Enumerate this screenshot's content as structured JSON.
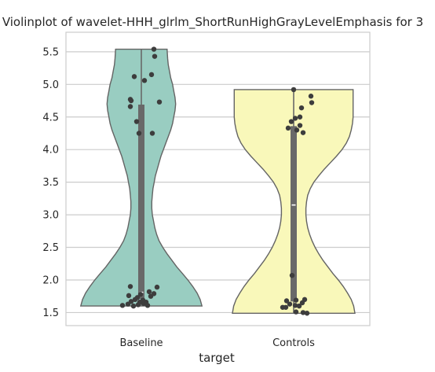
{
  "chart_data": {
    "type": "violin",
    "title": "Violinplot of wavelet-HHH_glrlm_ShortRunHighGrayLevelEmphasis for 3",
    "xlabel": "target",
    "ylabel": "",
    "categories": [
      "Baseline",
      "Controls"
    ],
    "ylim": [
      1.3,
      5.8
    ],
    "yticks": [
      1.5,
      2.0,
      2.5,
      3.0,
      3.5,
      4.0,
      4.5,
      5.0,
      5.5
    ],
    "ytick_labels": [
      "1.5",
      "2.0",
      "2.5",
      "3.0",
      "3.5",
      "4.0",
      "4.5",
      "5.0",
      "5.5"
    ],
    "grid": "horizontal",
    "inner": "box",
    "cut": 0,
    "series": [
      {
        "category": "Baseline",
        "color": "#99cdc1",
        "min": 1.6,
        "max": 5.54,
        "q1": 1.71,
        "median": 1.81,
        "q3": 4.69,
        "density": [
          [
            1.6,
            0.99
          ],
          [
            1.7,
            0.96
          ],
          [
            1.8,
            0.91
          ],
          [
            1.9,
            0.84
          ],
          [
            2.0,
            0.76
          ],
          [
            2.1,
            0.67
          ],
          [
            2.2,
            0.58
          ],
          [
            2.3,
            0.5
          ],
          [
            2.4,
            0.42
          ],
          [
            2.5,
            0.35
          ],
          [
            2.6,
            0.29
          ],
          [
            2.7,
            0.25
          ],
          [
            2.8,
            0.22
          ],
          [
            2.9,
            0.2
          ],
          [
            3.0,
            0.18
          ],
          [
            3.1,
            0.17
          ],
          [
            3.2,
            0.17
          ],
          [
            3.3,
            0.18
          ],
          [
            3.4,
            0.19
          ],
          [
            3.5,
            0.21
          ],
          [
            3.6,
            0.23
          ],
          [
            3.7,
            0.26
          ],
          [
            3.8,
            0.29
          ],
          [
            3.9,
            0.32
          ],
          [
            4.0,
            0.36
          ],
          [
            4.1,
            0.4
          ],
          [
            4.2,
            0.44
          ],
          [
            4.3,
            0.48
          ],
          [
            4.4,
            0.51
          ],
          [
            4.5,
            0.53
          ],
          [
            4.6,
            0.55
          ],
          [
            4.7,
            0.56
          ],
          [
            4.8,
            0.55
          ],
          [
            4.9,
            0.53
          ],
          [
            5.0,
            0.51
          ],
          [
            5.1,
            0.48
          ],
          [
            5.2,
            0.46
          ],
          [
            5.3,
            0.44
          ],
          [
            5.4,
            0.43
          ],
          [
            5.54,
            0.42
          ]
        ],
        "points": [
          [
            -0.24,
            1.61
          ],
          [
            -0.17,
            1.63
          ],
          [
            -0.1,
            1.6
          ],
          [
            -0.04,
            1.62
          ],
          [
            0.03,
            1.64
          ],
          [
            0.08,
            1.61
          ],
          [
            -0.13,
            1.67
          ],
          [
            -0.02,
            1.66
          ],
          [
            0.06,
            1.66
          ],
          [
            -0.08,
            1.7
          ],
          [
            0.02,
            1.69
          ],
          [
            -0.16,
            1.76
          ],
          [
            -0.05,
            1.73
          ],
          [
            0.12,
            1.75
          ],
          [
            0.16,
            1.79
          ],
          [
            -0.01,
            1.78
          ],
          [
            0.1,
            1.82
          ],
          [
            -0.14,
            1.9
          ],
          [
            0.2,
            1.89
          ],
          [
            -0.03,
            4.25
          ],
          [
            0.14,
            4.25
          ],
          [
            -0.06,
            4.43
          ],
          [
            -0.14,
            4.66
          ],
          [
            -0.13,
            4.75
          ],
          [
            -0.14,
            4.77
          ],
          [
            0.23,
            4.73
          ],
          [
            0.04,
            5.06
          ],
          [
            -0.09,
            5.12
          ],
          [
            0.13,
            5.15
          ],
          [
            0.17,
            5.43
          ],
          [
            0.16,
            5.54
          ]
        ]
      },
      {
        "category": "Controls",
        "color": "#f9f8ba",
        "min": 1.49,
        "max": 4.92,
        "q1": 1.67,
        "median": 3.15,
        "q3": 4.36,
        "density": [
          [
            1.49,
            1.0
          ],
          [
            1.6,
            0.98
          ],
          [
            1.7,
            0.94
          ],
          [
            1.8,
            0.88
          ],
          [
            1.9,
            0.81
          ],
          [
            2.0,
            0.73
          ],
          [
            2.1,
            0.64
          ],
          [
            2.2,
            0.56
          ],
          [
            2.3,
            0.48
          ],
          [
            2.4,
            0.41
          ],
          [
            2.5,
            0.35
          ],
          [
            2.6,
            0.3
          ],
          [
            2.7,
            0.26
          ],
          [
            2.8,
            0.23
          ],
          [
            2.9,
            0.21
          ],
          [
            3.0,
            0.2
          ],
          [
            3.1,
            0.2
          ],
          [
            3.2,
            0.21
          ],
          [
            3.3,
            0.23
          ],
          [
            3.4,
            0.27
          ],
          [
            3.5,
            0.33
          ],
          [
            3.6,
            0.41
          ],
          [
            3.7,
            0.5
          ],
          [
            3.8,
            0.6
          ],
          [
            3.9,
            0.7
          ],
          [
            4.0,
            0.79
          ],
          [
            4.1,
            0.86
          ],
          [
            4.2,
            0.91
          ],
          [
            4.3,
            0.94
          ],
          [
            4.4,
            0.96
          ],
          [
            4.5,
            0.97
          ],
          [
            4.6,
            0.97
          ],
          [
            4.7,
            0.97
          ],
          [
            4.8,
            0.97
          ],
          [
            4.92,
            0.97
          ]
        ],
        "points": [
          [
            -0.14,
            1.58
          ],
          [
            -0.1,
            1.58
          ],
          [
            -0.05,
            1.63
          ],
          [
            0.02,
            1.61
          ],
          [
            0.07,
            1.6
          ],
          [
            0.11,
            1.65
          ],
          [
            0.14,
            1.7
          ],
          [
            0.03,
            1.69
          ],
          [
            -0.09,
            1.68
          ],
          [
            0.12,
            1.5
          ],
          [
            0.17,
            1.49
          ],
          [
            0.03,
            1.51
          ],
          [
            -0.02,
            2.07
          ],
          [
            0.04,
            4.3
          ],
          [
            0.12,
            4.26
          ],
          [
            -0.07,
            4.33
          ],
          [
            0.08,
            4.37
          ],
          [
            -0.03,
            4.43
          ],
          [
            0.08,
            4.5
          ],
          [
            0.02,
            4.48
          ],
          [
            0.1,
            4.64
          ],
          [
            0.23,
            4.72
          ],
          [
            0.22,
            4.82
          ],
          [
            0.0,
            4.92
          ]
        ]
      }
    ],
    "point_color": "#3d3d3d",
    "box_color": "#696969",
    "edge_color": "#646464",
    "grid_color": "#cccccc",
    "spine_color": "#cccccc"
  }
}
